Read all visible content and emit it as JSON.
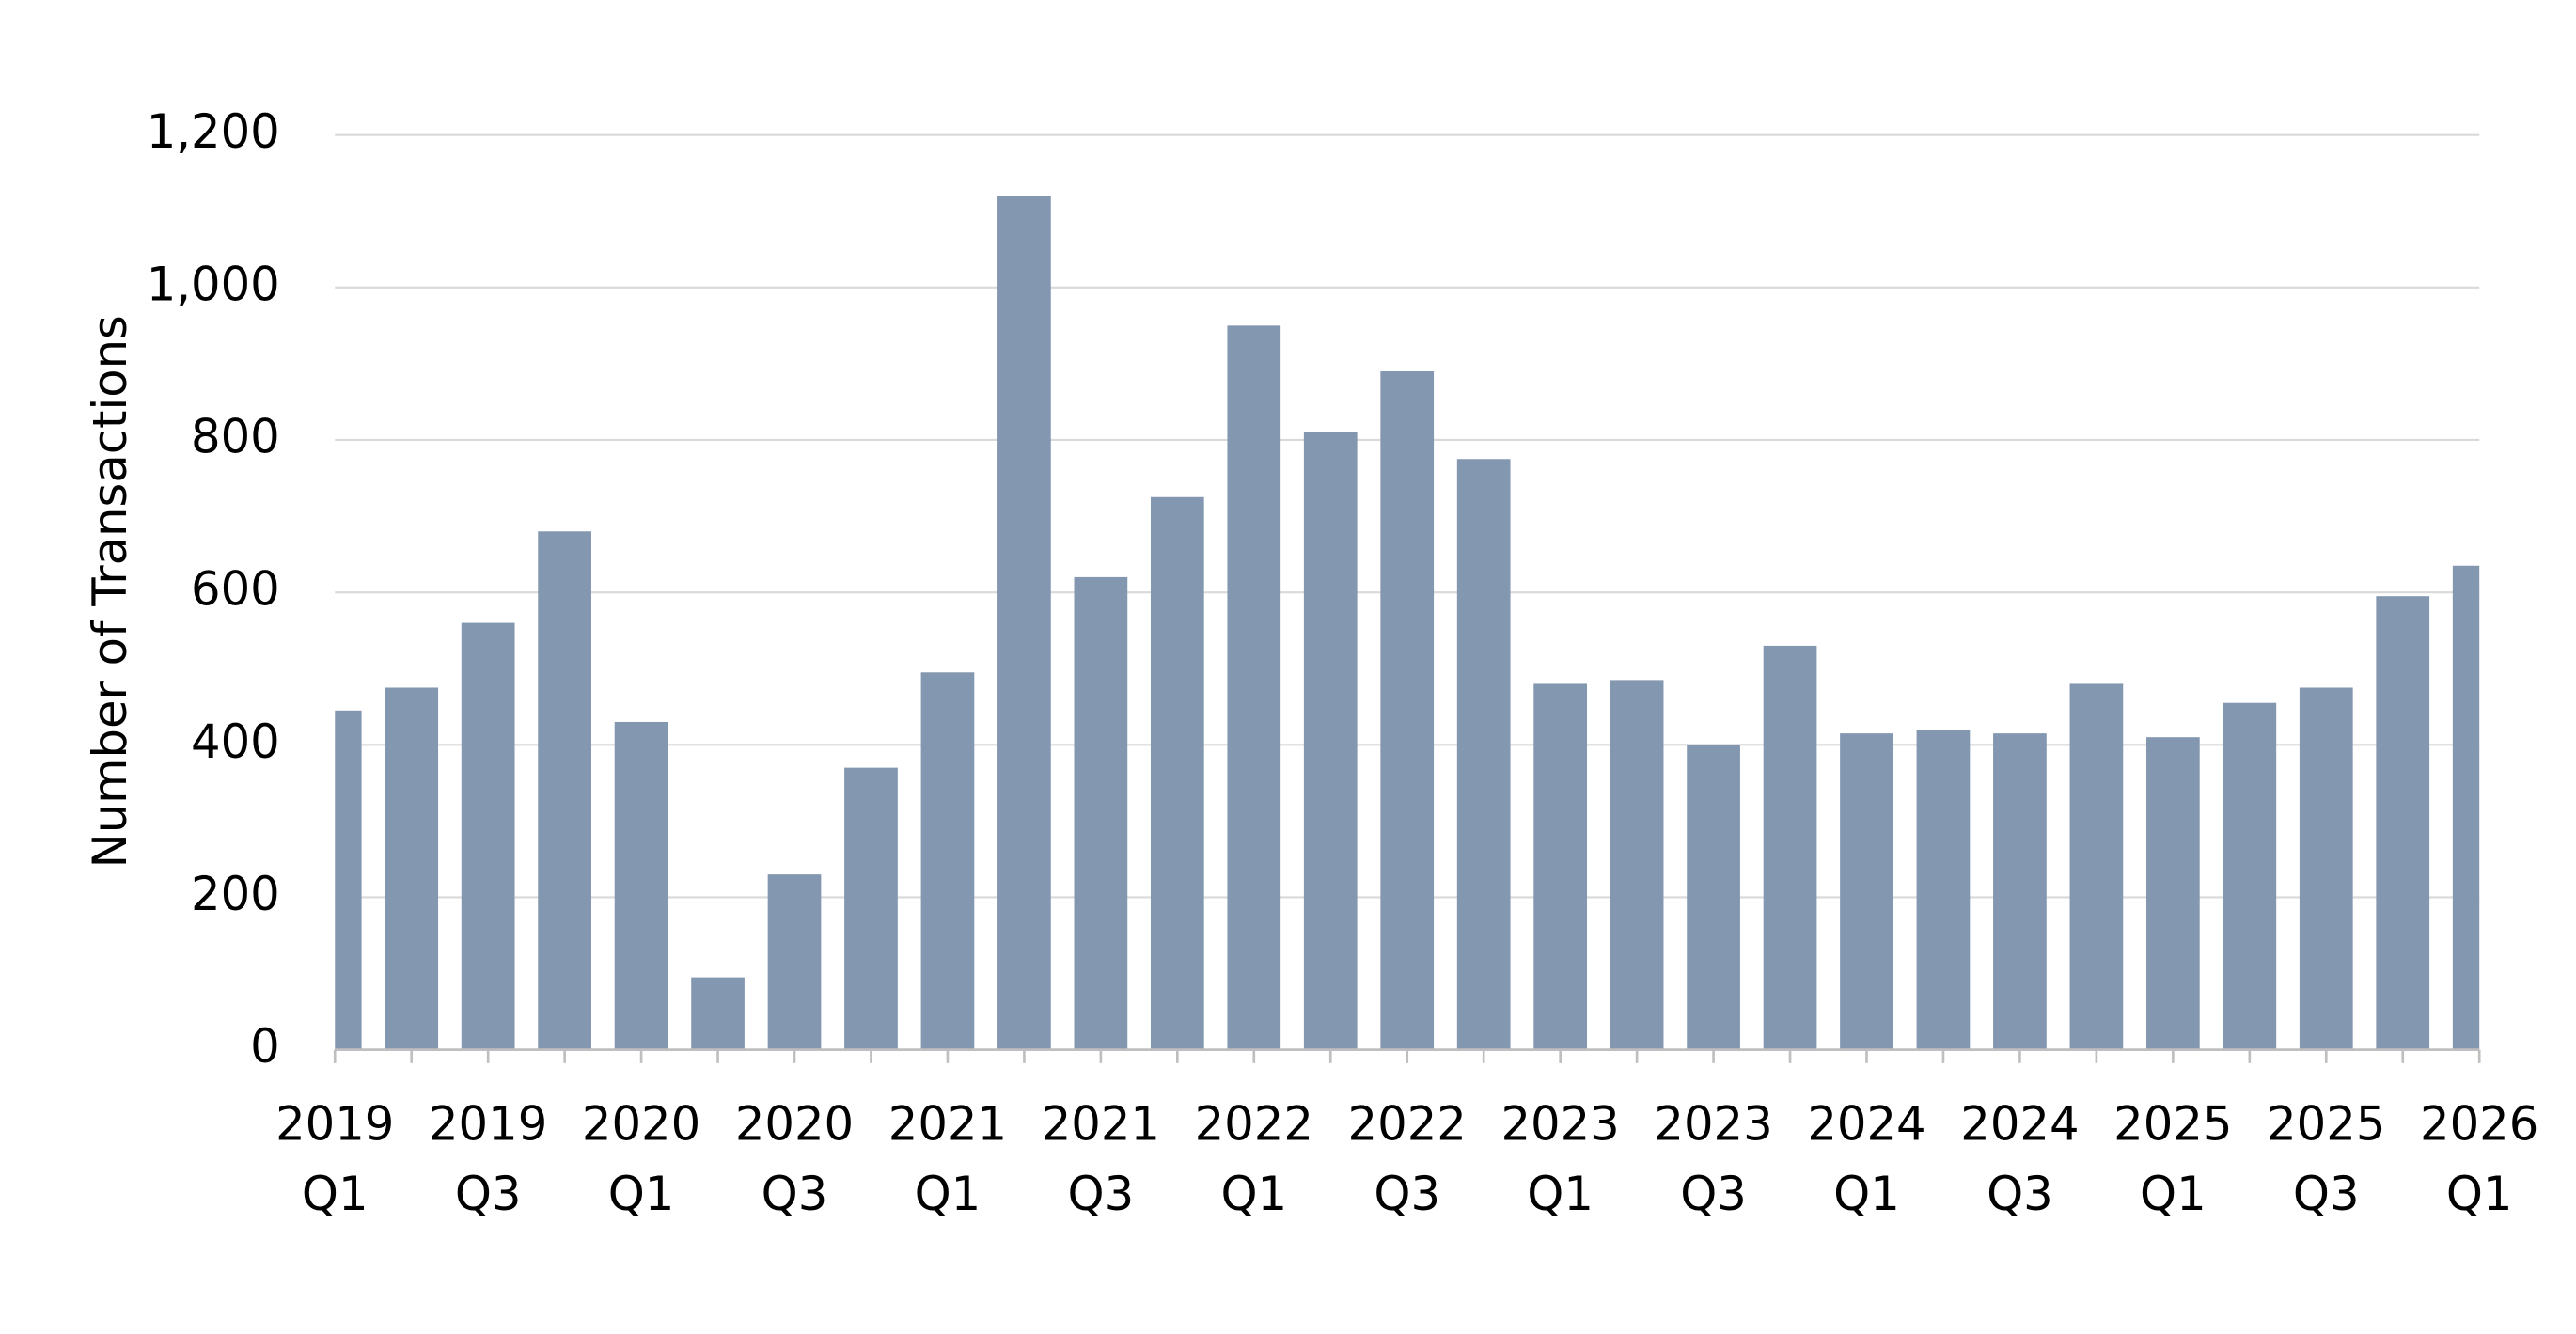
{
  "chart_data": {
    "type": "bar",
    "y_label": "Number of Transactions",
    "categories": [
      "2019\nQ1",
      null,
      "2019\nQ3",
      null,
      "2020\nQ1",
      null,
      "2020\nQ3",
      null,
      "2021\nQ1",
      null,
      "2021\nQ3",
      null,
      "2022\nQ1",
      null,
      "2022\nQ3",
      null,
      "2023\nQ1",
      null,
      "2023\nQ3",
      null,
      "2024\nQ1",
      null,
      "2024\nQ3",
      null,
      "2025\nQ1",
      null,
      "2025\nQ3",
      null,
      "2026\nQ1"
    ],
    "values": [
      445,
      475,
      560,
      680,
      430,
      95,
      230,
      370,
      495,
      1120,
      620,
      725,
      950,
      810,
      890,
      775,
      480,
      485,
      400,
      530,
      415,
      420,
      415,
      480,
      410,
      455,
      475,
      595,
      635
    ],
    "color": "#8497b0",
    "ylim": [
      0,
      1200
    ],
    "yticks": [
      0,
      200,
      400,
      600,
      800,
      {
        "value": 1000,
        "label": "1,000"
      },
      {
        "value": 1200,
        "label": "1,200"
      }
    ],
    "grid": true
  }
}
